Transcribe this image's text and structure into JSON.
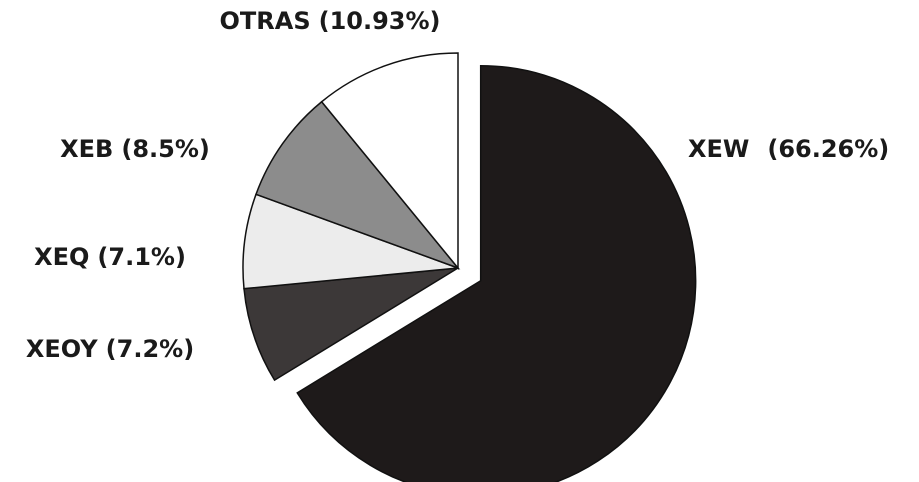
{
  "chart_data": {
    "type": "pie",
    "categories": [
      "XEW",
      "XEOY",
      "XEQ",
      "XEB",
      "OTRAS"
    ],
    "values": [
      66.26,
      7.2,
      7.1,
      8.5,
      10.93
    ],
    "value_labels": [
      "(66.26%)",
      "(7.2%)",
      "(7.1%)",
      "(8.5%)",
      "(10.93%)"
    ],
    "colors": [
      "#1e1a1a",
      "#3c3838",
      "#ececec",
      "#8c8c8c",
      "#ffffff"
    ]
  }
}
